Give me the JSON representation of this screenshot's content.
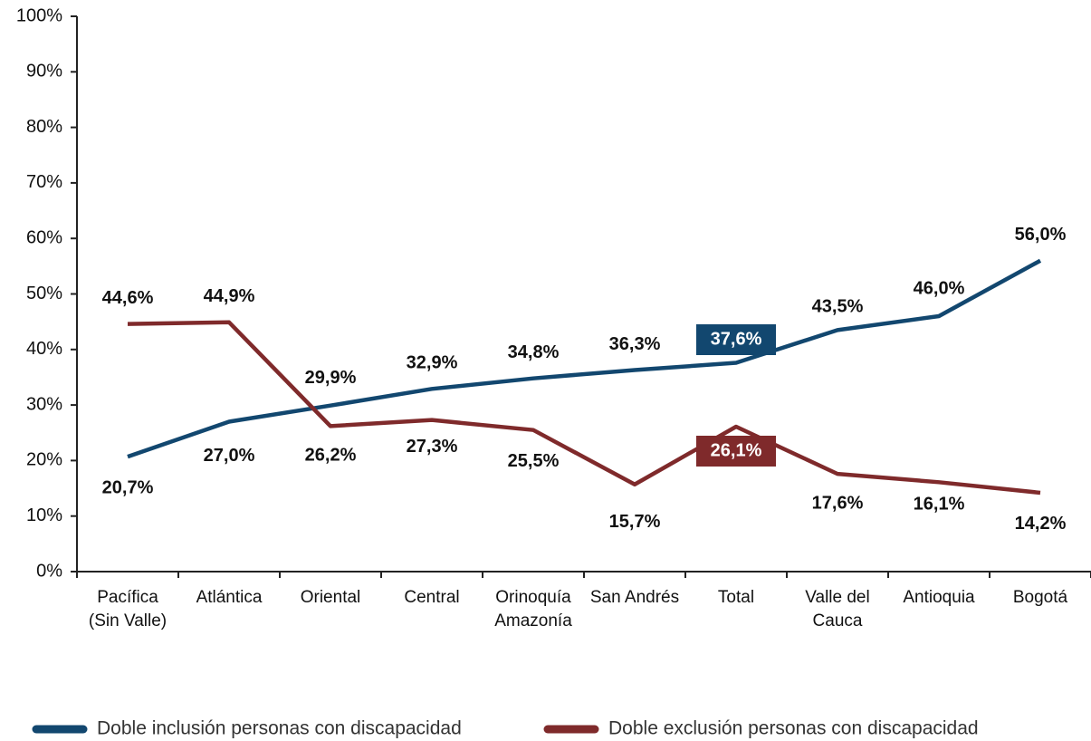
{
  "chart_data": {
    "type": "line",
    "categories": [
      "Pacífica\n(Sin Valle)",
      "Atlántica",
      "Oriental",
      "Central",
      "Orinoquía\nAmazonía",
      "San Andrés",
      "Total",
      "Valle del\nCauca",
      "Antioquia",
      "Bogotá"
    ],
    "series": [
      {
        "name": "Doble inclusión personas con discapacidad",
        "color": "#12476f",
        "values": [
          20.7,
          27.0,
          29.9,
          32.9,
          34.8,
          36.3,
          37.6,
          43.5,
          46.0,
          56.0
        ],
        "value_labels": [
          "20,7%",
          "27,0%",
          "29,9%",
          "32,9%",
          "34,8%",
          "36,3%",
          "37,6%",
          "43,5%",
          "46,0%",
          "56,0%"
        ]
      },
      {
        "name": "Doble exclusión personas con discapacidad",
        "color": "#7f2a2b",
        "values": [
          44.6,
          44.9,
          26.2,
          27.3,
          25.5,
          15.7,
          26.1,
          17.6,
          16.1,
          14.2
        ],
        "value_labels": [
          "44,6%",
          "44,9%",
          "26,2%",
          "27,3%",
          "25,5%",
          "15,7%",
          "26,1%",
          "17,6%",
          "16,1%",
          "14,2%"
        ]
      }
    ],
    "ylim": [
      0,
      100
    ],
    "yticks": [
      {
        "value": 0,
        "label": "0%"
      },
      {
        "value": 10,
        "label": "10%"
      },
      {
        "value": 20,
        "label": "20%"
      },
      {
        "value": 30,
        "label": "30%"
      },
      {
        "value": 40,
        "label": "40%"
      },
      {
        "value": 50,
        "label": "50%"
      },
      {
        "value": 60,
        "label": "60%"
      },
      {
        "value": 70,
        "label": "70%"
      },
      {
        "value": 80,
        "label": "80%"
      },
      {
        "value": 90,
        "label": "90%"
      },
      {
        "value": 100,
        "label": "100%"
      }
    ],
    "legend": "bottom"
  }
}
